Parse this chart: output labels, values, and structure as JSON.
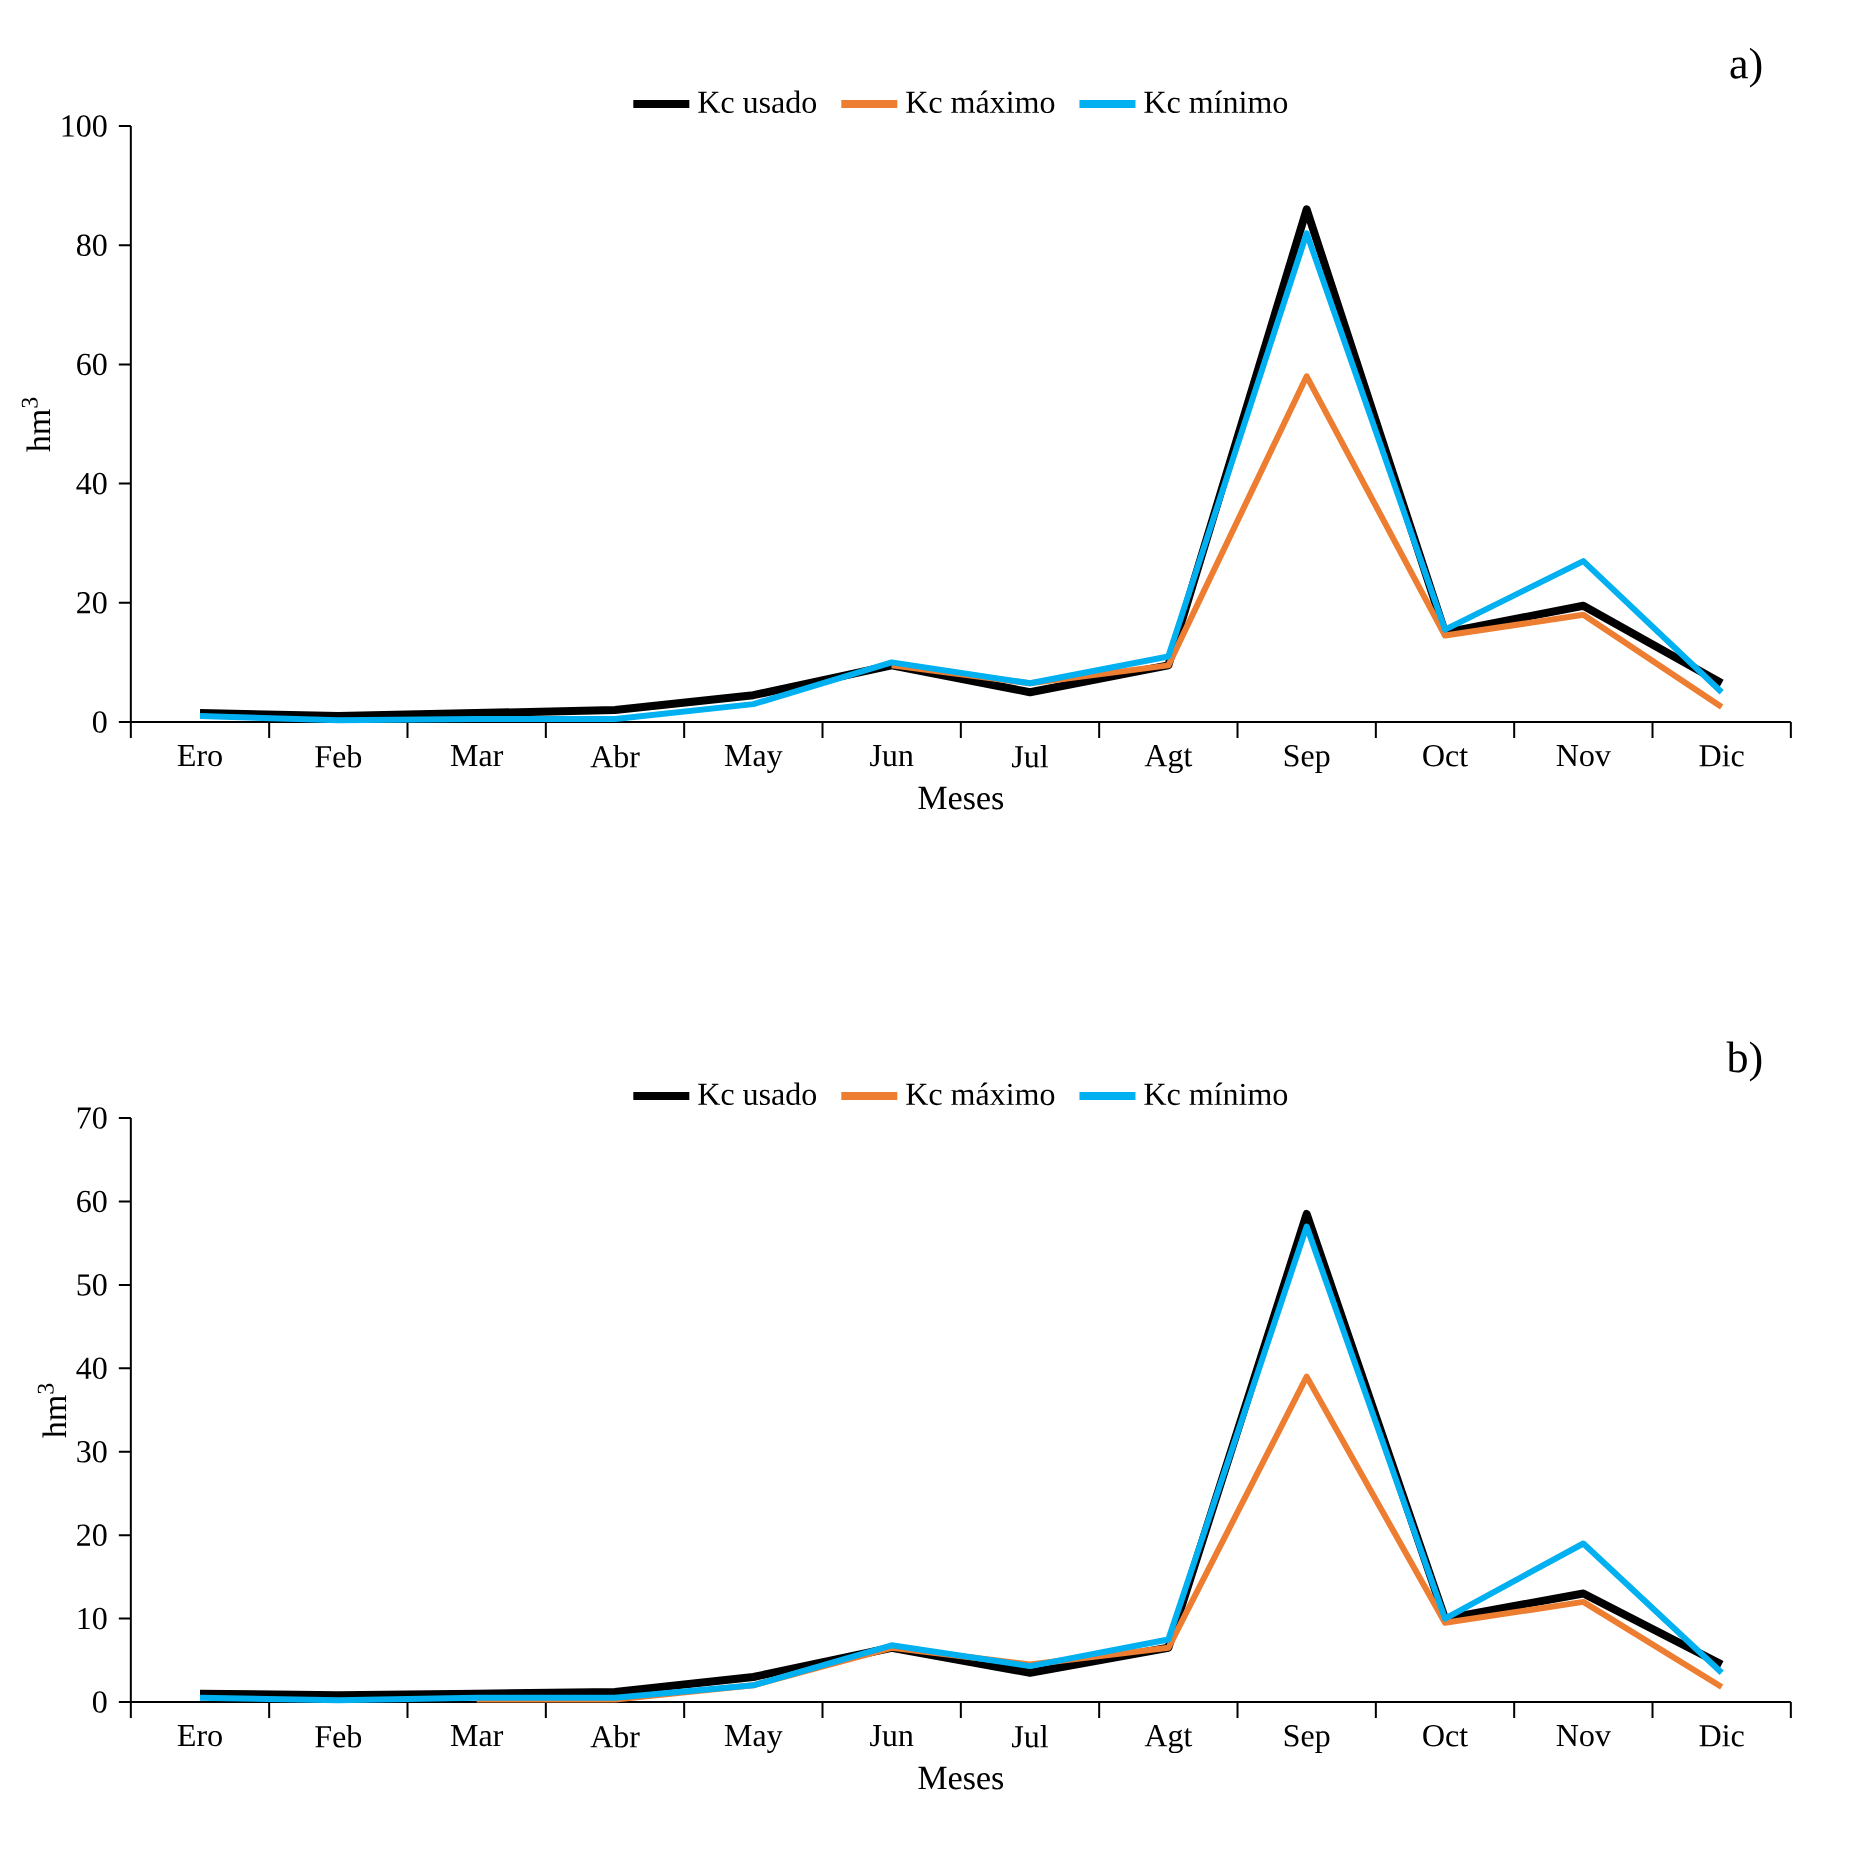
{
  "chart_data": [
    {
      "type": "line",
      "categories": [
        "Ero",
        "Feb",
        "Mar",
        "Abr",
        "May",
        "Jun",
        "Jul",
        "Agt",
        "Sep",
        "Oct",
        "Nov",
        "Dic"
      ],
      "xlabel": "Meses",
      "ylabel": "hm$^{3}$",
      "ylim": [
        0,
        100
      ],
      "yticks": [
        0,
        20,
        40,
        60,
        80,
        100
      ],
      "grid": false,
      "legend": "top",
      "marker": "none",
      "line_style": "solid",
      "annotations": [
        "a)"
      ],
      "series": [
        {
          "name": "Kc usado",
          "color": "#000000",
          "values": [
            1.5,
            1,
            1.5,
            2,
            4.5,
            9.5,
            5,
            9.5,
            86,
            15,
            19.5,
            6.5
          ]
        },
        {
          "name": "Kc máximo",
          "color": "#ed7d31",
          "values": [
            null,
            null,
            null,
            null,
            null,
            9.5,
            6.5,
            9.5,
            58,
            14.5,
            18,
            2.5
          ]
        },
        {
          "name": "Kc mínimo",
          "color": "#00b0f0",
          "values": [
            1,
            0.3,
            0.5,
            0.5,
            3,
            10,
            6.5,
            11,
            82,
            15.5,
            27,
            5
          ]
        }
      ]
    },
    {
      "type": "line",
      "categories": [
        "Ero",
        "Feb",
        "Mar",
        "Abr",
        "May",
        "Jun",
        "Jul",
        "Agt",
        "Sep",
        "Oct",
        "Nov",
        "Dic"
      ],
      "xlabel": "Meses",
      "ylabel": "hm$^{3}$",
      "ylim": [
        0,
        70
      ],
      "yticks": [
        0,
        10,
        20,
        30,
        40,
        50,
        60,
        70
      ],
      "grid": false,
      "legend": "top",
      "marker": "none",
      "line_style": "solid",
      "annotations": [
        "b)"
      ],
      "series": [
        {
          "name": "Kc usado",
          "color": "#000000",
          "values": [
            1,
            0.8,
            1,
            1.2,
            3,
            6.5,
            3.5,
            6.5,
            58.5,
            10,
            13,
            4.5
          ]
        },
        {
          "name": "Kc máximo",
          "color": "#ed7d31",
          "values": [
            null,
            null,
            0.3,
            0.3,
            2,
            6.5,
            4.5,
            6.5,
            39,
            9.5,
            12,
            1.8
          ]
        },
        {
          "name": "Kc mínimo",
          "color": "#00b0f0",
          "values": [
            0.5,
            0.2,
            0.5,
            0.5,
            2,
            6.8,
            4.3,
            7.5,
            57,
            10,
            19,
            3.5
          ]
        }
      ]
    }
  ]
}
